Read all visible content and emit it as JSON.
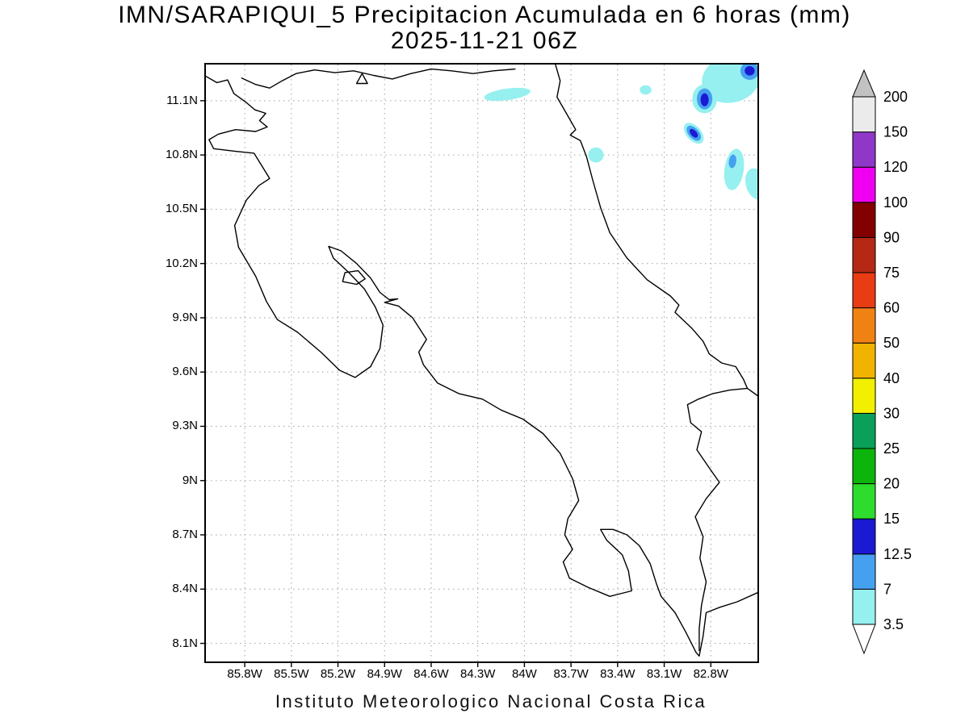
{
  "title": {
    "line1": "IMN/SARAPIQUI_5 Precipitacion Acumulada en 6 horas (mm)",
    "line2": "2025-11-21 06Z"
  },
  "caption": "Instituto Meteorologico Nacional Costa Rica",
  "chart_data": {
    "type": "heatmap",
    "title": "IMN/SARAPIQUI_5 Precipitacion Acumulada en 6 horas (mm)",
    "subtitle": "2025-11-21 06Z",
    "units": "mm",
    "grid": "dotted",
    "legend_position": "right",
    "projection": {
      "lon_west": 86.05,
      "lon_east": 82.5,
      "lat_north": 11.3,
      "lat_south": 8.0
    },
    "lon_ticks": [
      {
        "v": 85.8,
        "label": "85.8W"
      },
      {
        "v": 85.5,
        "label": "85.5W"
      },
      {
        "v": 85.2,
        "label": "85.2W"
      },
      {
        "v": 84.9,
        "label": "84.9W"
      },
      {
        "v": 84.6,
        "label": "84.6W"
      },
      {
        "v": 84.3,
        "label": "84.3W"
      },
      {
        "v": 84.0,
        "label": "84W"
      },
      {
        "v": 83.7,
        "label": "83.7W"
      },
      {
        "v": 83.4,
        "label": "83.4W"
      },
      {
        "v": 83.1,
        "label": "83.1W"
      },
      {
        "v": 82.8,
        "label": "82.8W"
      }
    ],
    "lat_ticks": [
      {
        "v": 11.1,
        "label": "11.1N"
      },
      {
        "v": 10.8,
        "label": "10.8N"
      },
      {
        "v": 10.5,
        "label": "10.5N"
      },
      {
        "v": 10.2,
        "label": "10.2N"
      },
      {
        "v": 9.9,
        "label": "9.9N"
      },
      {
        "v": 9.6,
        "label": "9.6N"
      },
      {
        "v": 9.3,
        "label": "9.3N"
      },
      {
        "v": 9.0,
        "label": "9N"
      },
      {
        "v": 8.7,
        "label": "8.7N"
      },
      {
        "v": 8.4,
        "label": "8.4N"
      },
      {
        "v": 8.1,
        "label": "8.1N"
      }
    ],
    "colorbar": {
      "levels": [
        "3.5",
        "7",
        "12.5",
        "15",
        "20",
        "25",
        "30",
        "40",
        "50",
        "60",
        "75",
        "90",
        "100",
        "120",
        "150",
        "200"
      ],
      "colors": {
        "below": "#ffffff",
        "segments": [
          "#96f0f0",
          "#46a0f0",
          "#1a1ad2",
          "#2edc2e",
          "#0cb40c",
          "#0aa05a",
          "#f0f000",
          "#f0b400",
          "#f08214",
          "#e83c14",
          "#b42814",
          "#820000",
          "#f000f0",
          "#8f38c8",
          "#ebebeb"
        ],
        "above": "#c2c2c2"
      }
    },
    "cell_colors": {
      "light": "#96f0f0",
      "mid": "#46a0f0",
      "dark": "#1a1ad2"
    },
    "precip_cells": [
      {
        "lon": 84.11,
        "lat": 11.135,
        "rx": 0.15,
        "ry": 0.032,
        "rot": -8,
        "c": "light"
      },
      {
        "lon": 82.67,
        "lat": 11.22,
        "rx": 0.19,
        "ry": 0.13,
        "rot": -15,
        "c": "light"
      },
      {
        "lon": 83.22,
        "lat": 11.16,
        "rx": 0.038,
        "ry": 0.026,
        "rot": 0,
        "c": "light"
      },
      {
        "lon": 82.84,
        "lat": 11.11,
        "rx": 0.08,
        "ry": 0.08,
        "rot": 0,
        "c": "light"
      },
      {
        "lon": 82.91,
        "lat": 10.92,
        "rx": 0.08,
        "ry": 0.04,
        "rot": 48,
        "c": "light"
      },
      {
        "lon": 83.54,
        "lat": 10.8,
        "rx": 0.05,
        "ry": 0.042,
        "rot": 0,
        "c": "light"
      },
      {
        "lon": 82.65,
        "lat": 10.72,
        "rx": 0.062,
        "ry": 0.115,
        "rot": 8,
        "c": "light"
      },
      {
        "lon": 82.51,
        "lat": 10.64,
        "rx": 0.065,
        "ry": 0.088,
        "rot": -15,
        "c": "light"
      },
      {
        "lon": 82.55,
        "lat": 11.265,
        "rx": 0.06,
        "ry": 0.05,
        "rot": 0,
        "c": "mid"
      },
      {
        "lon": 82.84,
        "lat": 11.11,
        "rx": 0.05,
        "ry": 0.058,
        "rot": 0,
        "c": "mid"
      },
      {
        "lon": 82.91,
        "lat": 10.92,
        "rx": 0.058,
        "ry": 0.028,
        "rot": 48,
        "c": "mid"
      },
      {
        "lon": 82.66,
        "lat": 10.765,
        "rx": 0.024,
        "ry": 0.038,
        "rot": 8,
        "c": "mid"
      },
      {
        "lon": 82.55,
        "lat": 11.265,
        "rx": 0.032,
        "ry": 0.026,
        "rot": 0,
        "c": "dark"
      },
      {
        "lon": 82.84,
        "lat": 11.105,
        "rx": 0.026,
        "ry": 0.036,
        "rot": 0,
        "c": "dark"
      },
      {
        "lon": 82.91,
        "lat": 10.92,
        "rx": 0.034,
        "ry": 0.016,
        "rot": 48,
        "c": "dark"
      }
    ],
    "map_outlines": {
      "open_paths": [
        [
          [
            86.05,
            11.235
          ],
          [
            85.98,
            11.2
          ],
          [
            85.91,
            11.215
          ],
          [
            85.87,
            11.14
          ],
          [
            85.79,
            11.09
          ],
          [
            85.735,
            11.05
          ],
          [
            85.665,
            11.03
          ],
          [
            85.705,
            10.99
          ],
          [
            85.655,
            10.955
          ],
          [
            85.73,
            10.93
          ],
          [
            85.86,
            10.94
          ],
          [
            85.97,
            10.915
          ],
          [
            86.03,
            10.885
          ],
          [
            86.0,
            10.835
          ],
          [
            85.86,
            10.82
          ],
          [
            85.74,
            10.81
          ],
          [
            85.69,
            10.74
          ],
          [
            85.64,
            10.67
          ],
          [
            85.71,
            10.63
          ],
          [
            85.79,
            10.55
          ],
          [
            85.865,
            10.41
          ],
          [
            85.84,
            10.29
          ],
          [
            85.73,
            10.13
          ],
          [
            85.66,
            9.99
          ],
          [
            85.59,
            9.89
          ],
          [
            85.46,
            9.82
          ],
          [
            85.31,
            9.71
          ],
          [
            85.19,
            9.61
          ],
          [
            85.09,
            9.57
          ],
          [
            84.99,
            9.63
          ],
          [
            84.93,
            9.73
          ],
          [
            84.91,
            9.86
          ],
          [
            84.96,
            9.96
          ],
          [
            85.03,
            10.06
          ],
          [
            85.13,
            10.15
          ],
          [
            85.23,
            10.23
          ],
          [
            85.26,
            10.295
          ],
          [
            85.18,
            10.27
          ],
          [
            85.08,
            10.2
          ],
          [
            84.99,
            10.12
          ],
          [
            84.93,
            10.04
          ],
          [
            84.87,
            10.0
          ],
          [
            84.815,
            10.005
          ],
          [
            84.9,
            9.985
          ],
          [
            84.81,
            9.965
          ],
          [
            84.72,
            9.9
          ],
          [
            84.63,
            9.78
          ],
          [
            84.68,
            9.71
          ],
          [
            84.65,
            9.64
          ],
          [
            84.56,
            9.54
          ],
          [
            84.42,
            9.48
          ],
          [
            84.27,
            9.45
          ],
          [
            84.15,
            9.39
          ],
          [
            84.01,
            9.34
          ],
          [
            83.88,
            9.26
          ],
          [
            83.77,
            9.15
          ],
          [
            83.69,
            9.01
          ],
          [
            83.65,
            8.89
          ],
          [
            83.72,
            8.79
          ],
          [
            83.74,
            8.7
          ],
          [
            83.69,
            8.62
          ],
          [
            83.75,
            8.55
          ],
          [
            83.71,
            8.46
          ],
          [
            83.59,
            8.41
          ],
          [
            83.45,
            8.36
          ],
          [
            83.31,
            8.39
          ],
          [
            83.33,
            8.5
          ],
          [
            83.37,
            8.59
          ],
          [
            83.47,
            8.67
          ],
          [
            83.51,
            8.73
          ],
          [
            83.43,
            8.73
          ],
          [
            83.34,
            8.7
          ],
          [
            83.26,
            8.64
          ],
          [
            83.19,
            8.54
          ],
          [
            83.15,
            8.43
          ],
          [
            83.12,
            8.36
          ],
          [
            83.03,
            8.27
          ],
          [
            82.96,
            8.16
          ],
          [
            82.895,
            8.05
          ],
          [
            82.875,
            8.03
          ],
          [
            82.85,
            8.14
          ],
          [
            82.83,
            8.27
          ],
          [
            82.74,
            8.3
          ],
          [
            82.63,
            8.33
          ],
          [
            82.5,
            8.38
          ]
        ],
        [
          [
            83.8,
            11.3
          ],
          [
            83.77,
            11.21
          ],
          [
            83.79,
            11.12
          ],
          [
            83.73,
            11.03
          ],
          [
            83.67,
            10.94
          ],
          [
            83.705,
            10.91
          ],
          [
            83.64,
            10.88
          ],
          [
            83.6,
            10.79
          ],
          [
            83.56,
            10.66
          ],
          [
            83.51,
            10.51
          ],
          [
            83.45,
            10.37
          ],
          [
            83.34,
            10.23
          ],
          [
            83.21,
            10.11
          ],
          [
            83.06,
            10.02
          ],
          [
            83.005,
            9.97
          ],
          [
            83.03,
            9.93
          ],
          [
            82.92,
            9.84
          ],
          [
            82.85,
            9.77
          ],
          [
            82.81,
            9.7
          ],
          [
            82.73,
            9.65
          ],
          [
            82.64,
            9.63
          ],
          [
            82.59,
            9.56
          ],
          [
            82.565,
            9.51
          ],
          [
            82.5,
            9.47
          ]
        ],
        [
          [
            85.82,
            11.225
          ],
          [
            85.73,
            11.19
          ],
          [
            85.64,
            11.17
          ],
          [
            85.56,
            11.21
          ],
          [
            85.47,
            11.25
          ],
          [
            85.35,
            11.27
          ],
          [
            85.22,
            11.255
          ],
          [
            85.1,
            11.265
          ],
          [
            84.97,
            11.24
          ],
          [
            84.85,
            11.22
          ],
          [
            84.73,
            11.25
          ],
          [
            84.6,
            11.275
          ],
          [
            84.47,
            11.265
          ],
          [
            84.33,
            11.25
          ],
          [
            84.2,
            11.265
          ],
          [
            84.06,
            11.275
          ]
        ],
        [
          [
            82.565,
            9.51
          ],
          [
            82.68,
            9.5
          ],
          [
            82.79,
            9.48
          ],
          [
            82.88,
            9.45
          ],
          [
            82.95,
            9.42
          ],
          [
            82.93,
            9.32
          ],
          [
            82.86,
            9.27
          ],
          [
            82.89,
            9.17
          ],
          [
            82.81,
            9.07
          ],
          [
            82.745,
            8.99
          ],
          [
            82.83,
            8.9
          ],
          [
            82.9,
            8.8
          ],
          [
            82.85,
            8.69
          ],
          [
            82.87,
            8.57
          ],
          [
            82.83,
            8.44
          ],
          [
            82.86,
            8.31
          ],
          [
            82.875,
            8.18
          ],
          [
            82.875,
            8.06
          ]
        ]
      ],
      "closed_paths": [
        [
          [
            85.08,
            11.195
          ],
          [
            85.01,
            11.195
          ],
          [
            85.045,
            11.25
          ]
        ],
        [
          [
            85.17,
            10.1
          ],
          [
            85.08,
            10.085
          ],
          [
            85.025,
            10.115
          ],
          [
            85.07,
            10.16
          ],
          [
            85.155,
            10.15
          ]
        ]
      ]
    }
  }
}
